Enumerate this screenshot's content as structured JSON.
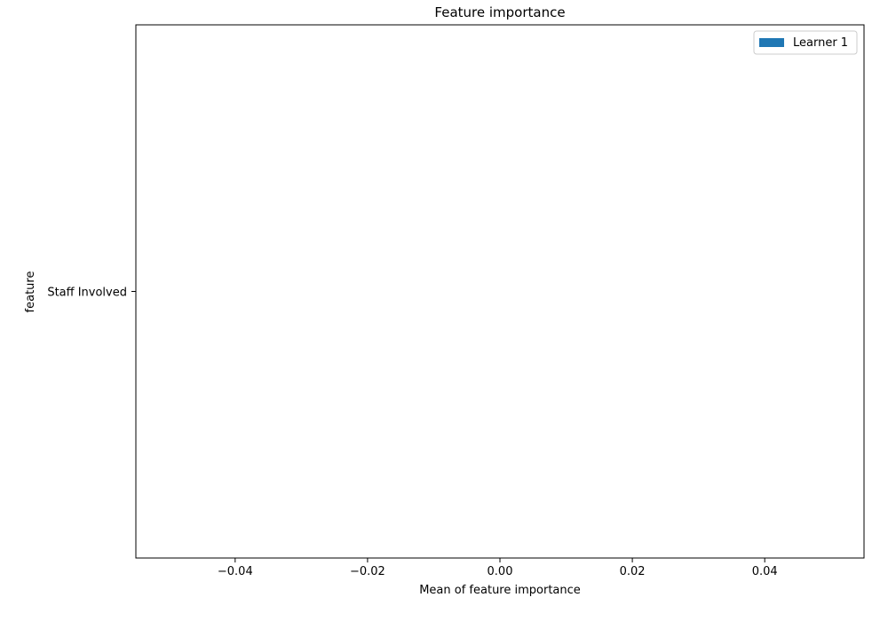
{
  "chart_data": {
    "type": "bar",
    "orientation": "horizontal",
    "title": "Feature importance",
    "xlabel": "Mean of feature importance",
    "ylabel": "feature",
    "categories": [
      "Staff Involved"
    ],
    "series": [
      {
        "name": "Learner 1",
        "values": [
          0.0
        ],
        "color": "#1f77b4"
      }
    ],
    "xlim": [
      -0.055,
      0.055
    ],
    "x_ticks": [
      -0.04,
      -0.02,
      0.0,
      0.02,
      0.04
    ],
    "x_tick_labels": [
      "−0.04",
      "−0.02",
      "0.00",
      "0.02",
      "0.04"
    ],
    "grid": false,
    "legend_position": "top-right"
  }
}
